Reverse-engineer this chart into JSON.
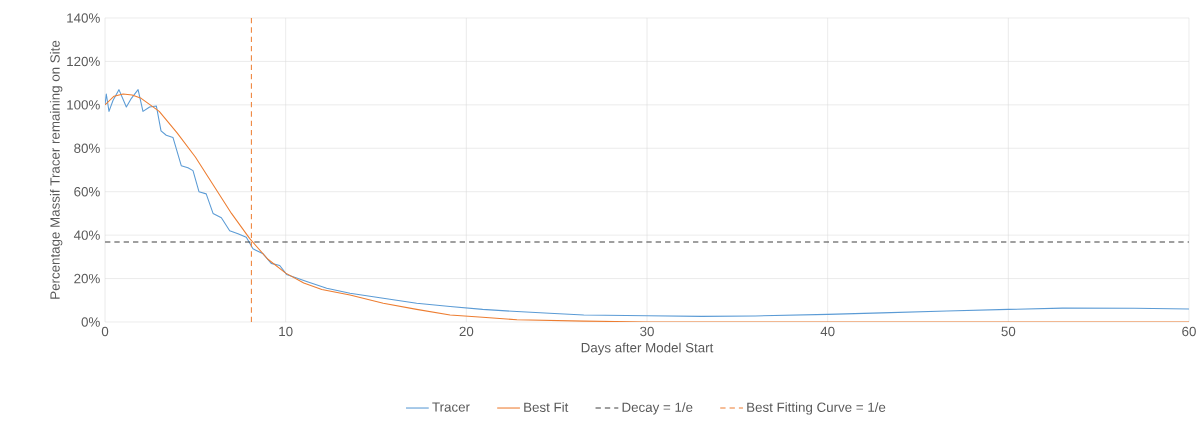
{
  "chart_data": {
    "type": "line",
    "xlabel": "Days after Model Start",
    "ylabel": "Percentage Massif Tracer remaining on Site",
    "xlim": [
      0,
      60
    ],
    "xticks": [
      0,
      10,
      20,
      30,
      40,
      50,
      60
    ],
    "ylim": [
      0,
      140
    ],
    "yticks": [
      {
        "value": 0,
        "label": "0%"
      },
      {
        "value": 20,
        "label": "20%"
      },
      {
        "value": 40,
        "label": "40%"
      },
      {
        "value": 60,
        "label": "60%"
      },
      {
        "value": 80,
        "label": "80%"
      },
      {
        "value": 100,
        "label": "100%"
      },
      {
        "value": 120,
        "label": "120%"
      },
      {
        "value": 140,
        "label": "140%"
      }
    ],
    "grid": true,
    "legend": "bottom",
    "marker": "none",
    "series": [
      {
        "name": "Tracer",
        "color": "#5b9bd5",
        "line_style": "solid",
        "x": [
          0,
          0.07,
          0.22,
          0.44,
          0.77,
          1.18,
          1.46,
          1.83,
          2.1,
          2.47,
          2.84,
          3.1,
          3.39,
          3.76,
          4.22,
          4.59,
          4.87,
          5.2,
          5.6,
          5.98,
          6.44,
          6.9,
          7.36,
          7.82,
          8.19,
          8.75,
          9.2,
          9.67,
          10.05,
          11.16,
          12.27,
          13.56,
          15.4,
          17.25,
          19.1,
          20.9,
          22.8,
          24.6,
          26.5,
          30,
          33,
          36,
          40,
          43,
          46.6,
          50,
          53,
          57,
          60
        ],
        "values": [
          100,
          105,
          97,
          102,
          107,
          99,
          103,
          107,
          97,
          99,
          99.5,
          88,
          86,
          85,
          72,
          71,
          69.7,
          60,
          59,
          50,
          48,
          42,
          40.6,
          39,
          33.7,
          31.4,
          27,
          26,
          21.9,
          18.6,
          15.5,
          13.2,
          10.9,
          8.6,
          7.1,
          5.8,
          4.8,
          4.0,
          3.2,
          2.9,
          2.6,
          2.8,
          3.5,
          4.2,
          5.1,
          5.8,
          6.4,
          6.3,
          6.0
        ]
      },
      {
        "name": "Best Fit",
        "color": "#ed7d31",
        "line_style": "solid",
        "x": [
          0,
          0.5,
          1,
          1.5,
          2,
          3,
          4,
          5,
          6,
          7,
          8,
          9,
          10,
          11,
          12,
          13.56,
          15.4,
          17.25,
          19.1,
          20.9,
          22.8,
          26.5,
          30,
          60
        ],
        "values": [
          100,
          104,
          105,
          104.5,
          103,
          97,
          87,
          76,
          63,
          50,
          38.5,
          29,
          22.5,
          18,
          15,
          12.4,
          8.6,
          5.8,
          3.2,
          2.2,
          1.0,
          0.4,
          0,
          0
        ]
      },
      {
        "name": "Decay = 1/e",
        "color": "#404040",
        "line_style": "dashed",
        "x": [
          0,
          60
        ],
        "values": [
          36.8,
          36.8
        ]
      },
      {
        "name": "Best Fitting Curve = 1/e",
        "color": "#ed7d31",
        "line_style": "dashed",
        "x": [
          8.1,
          8.1
        ],
        "values": [
          0,
          140
        ]
      }
    ]
  }
}
